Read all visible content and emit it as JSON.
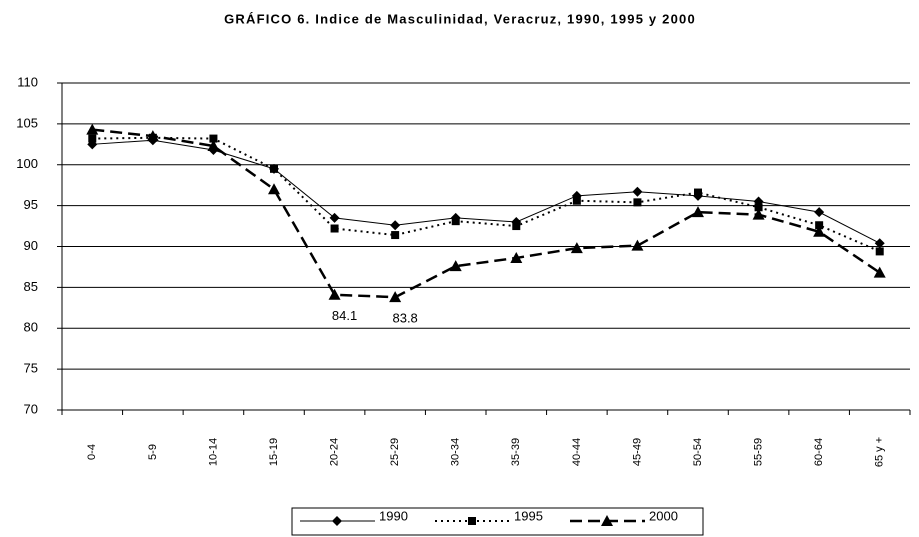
{
  "chart_data": {
    "type": "line",
    "title": "GRÁFICO 6. Indice de Masculinidad, Veracruz, 1990, 1995 y 2000",
    "categories": [
      "0-4",
      "5-9",
      "10-14",
      "15-19",
      "20-24",
      "25-29",
      "30-34",
      "35-39",
      "40-44",
      "45-49",
      "50-54",
      "55-59",
      "60-64",
      "65 y +"
    ],
    "series": [
      {
        "name": "1990",
        "color": "#000000",
        "dash": "solid",
        "marker": "diamond",
        "values": [
          102.5,
          103,
          101.8,
          99.5,
          93.5,
          92.6,
          93.5,
          93,
          96.2,
          96.7,
          96.2,
          95.5,
          94.2,
          90.4
        ]
      },
      {
        "name": "1995",
        "color": "#000000",
        "dash": "dotted",
        "marker": "square",
        "values": [
          103.2,
          103.3,
          103.2,
          99.5,
          92.2,
          91.4,
          93.1,
          92.5,
          95.6,
          95.4,
          96.6,
          94.8,
          92.6,
          89.4
        ]
      },
      {
        "name": "2000",
        "color": "#000000",
        "dash": "dashed",
        "marker": "triangle",
        "values": [
          104.3,
          103.5,
          102.3,
          97,
          84.1,
          83.8,
          87.6,
          88.6,
          89.8,
          90.1,
          94.2,
          93.9,
          91.8,
          86.8
        ],
        "value_labels": [
          null,
          null,
          null,
          null,
          "84.1",
          "83.8",
          null,
          null,
          null,
          null,
          null,
          null,
          null,
          null
        ]
      }
    ],
    "ylim": [
      70,
      110
    ],
    "yticks": [
      70,
      75,
      80,
      85,
      90,
      95,
      100,
      105,
      110
    ],
    "grid": true,
    "legend": "bottom"
  }
}
